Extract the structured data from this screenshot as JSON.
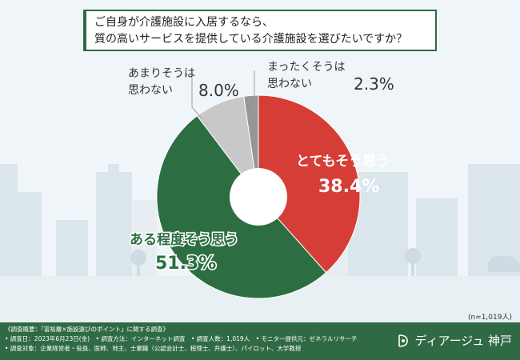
{
  "title": {
    "line1": "ご自身が介護施設に入居するなら、",
    "line2": "質の高いサービスを提供している介護施設を選びたいですか？"
  },
  "chart_data": {
    "type": "pie",
    "donut": true,
    "categories": [
      "とてもそう思う",
      "ある程度そう思う",
      "あまりそうは思わない",
      "まったくそうは思わない"
    ],
    "values": [
      38.4,
      51.3,
      8.0,
      2.3
    ],
    "value_labels": [
      "38.4%",
      "51.3%",
      "8.0%",
      "2.3%"
    ],
    "colors": [
      "#d63d36",
      "#2c6e42",
      "#c8c8c8",
      "#969696"
    ]
  },
  "n_note": "(n=1,019人)",
  "footer": {
    "line1": "《調査概要：「富裕層×施設選びのポイント」に関する調査》",
    "line2": "• 調査日：2023年6月23日(金)　• 調査方法：インターネット調査　• 調査人数：1,019人　• モニター提供元：ゼネラルリサーチ",
    "line3": "• 調査対象：企業経営者・役員、医師、地主、士業職（公認会計士、税理士、弁護士）、パイロット、大学教授",
    "brand": "ディアージュ 神戸"
  }
}
